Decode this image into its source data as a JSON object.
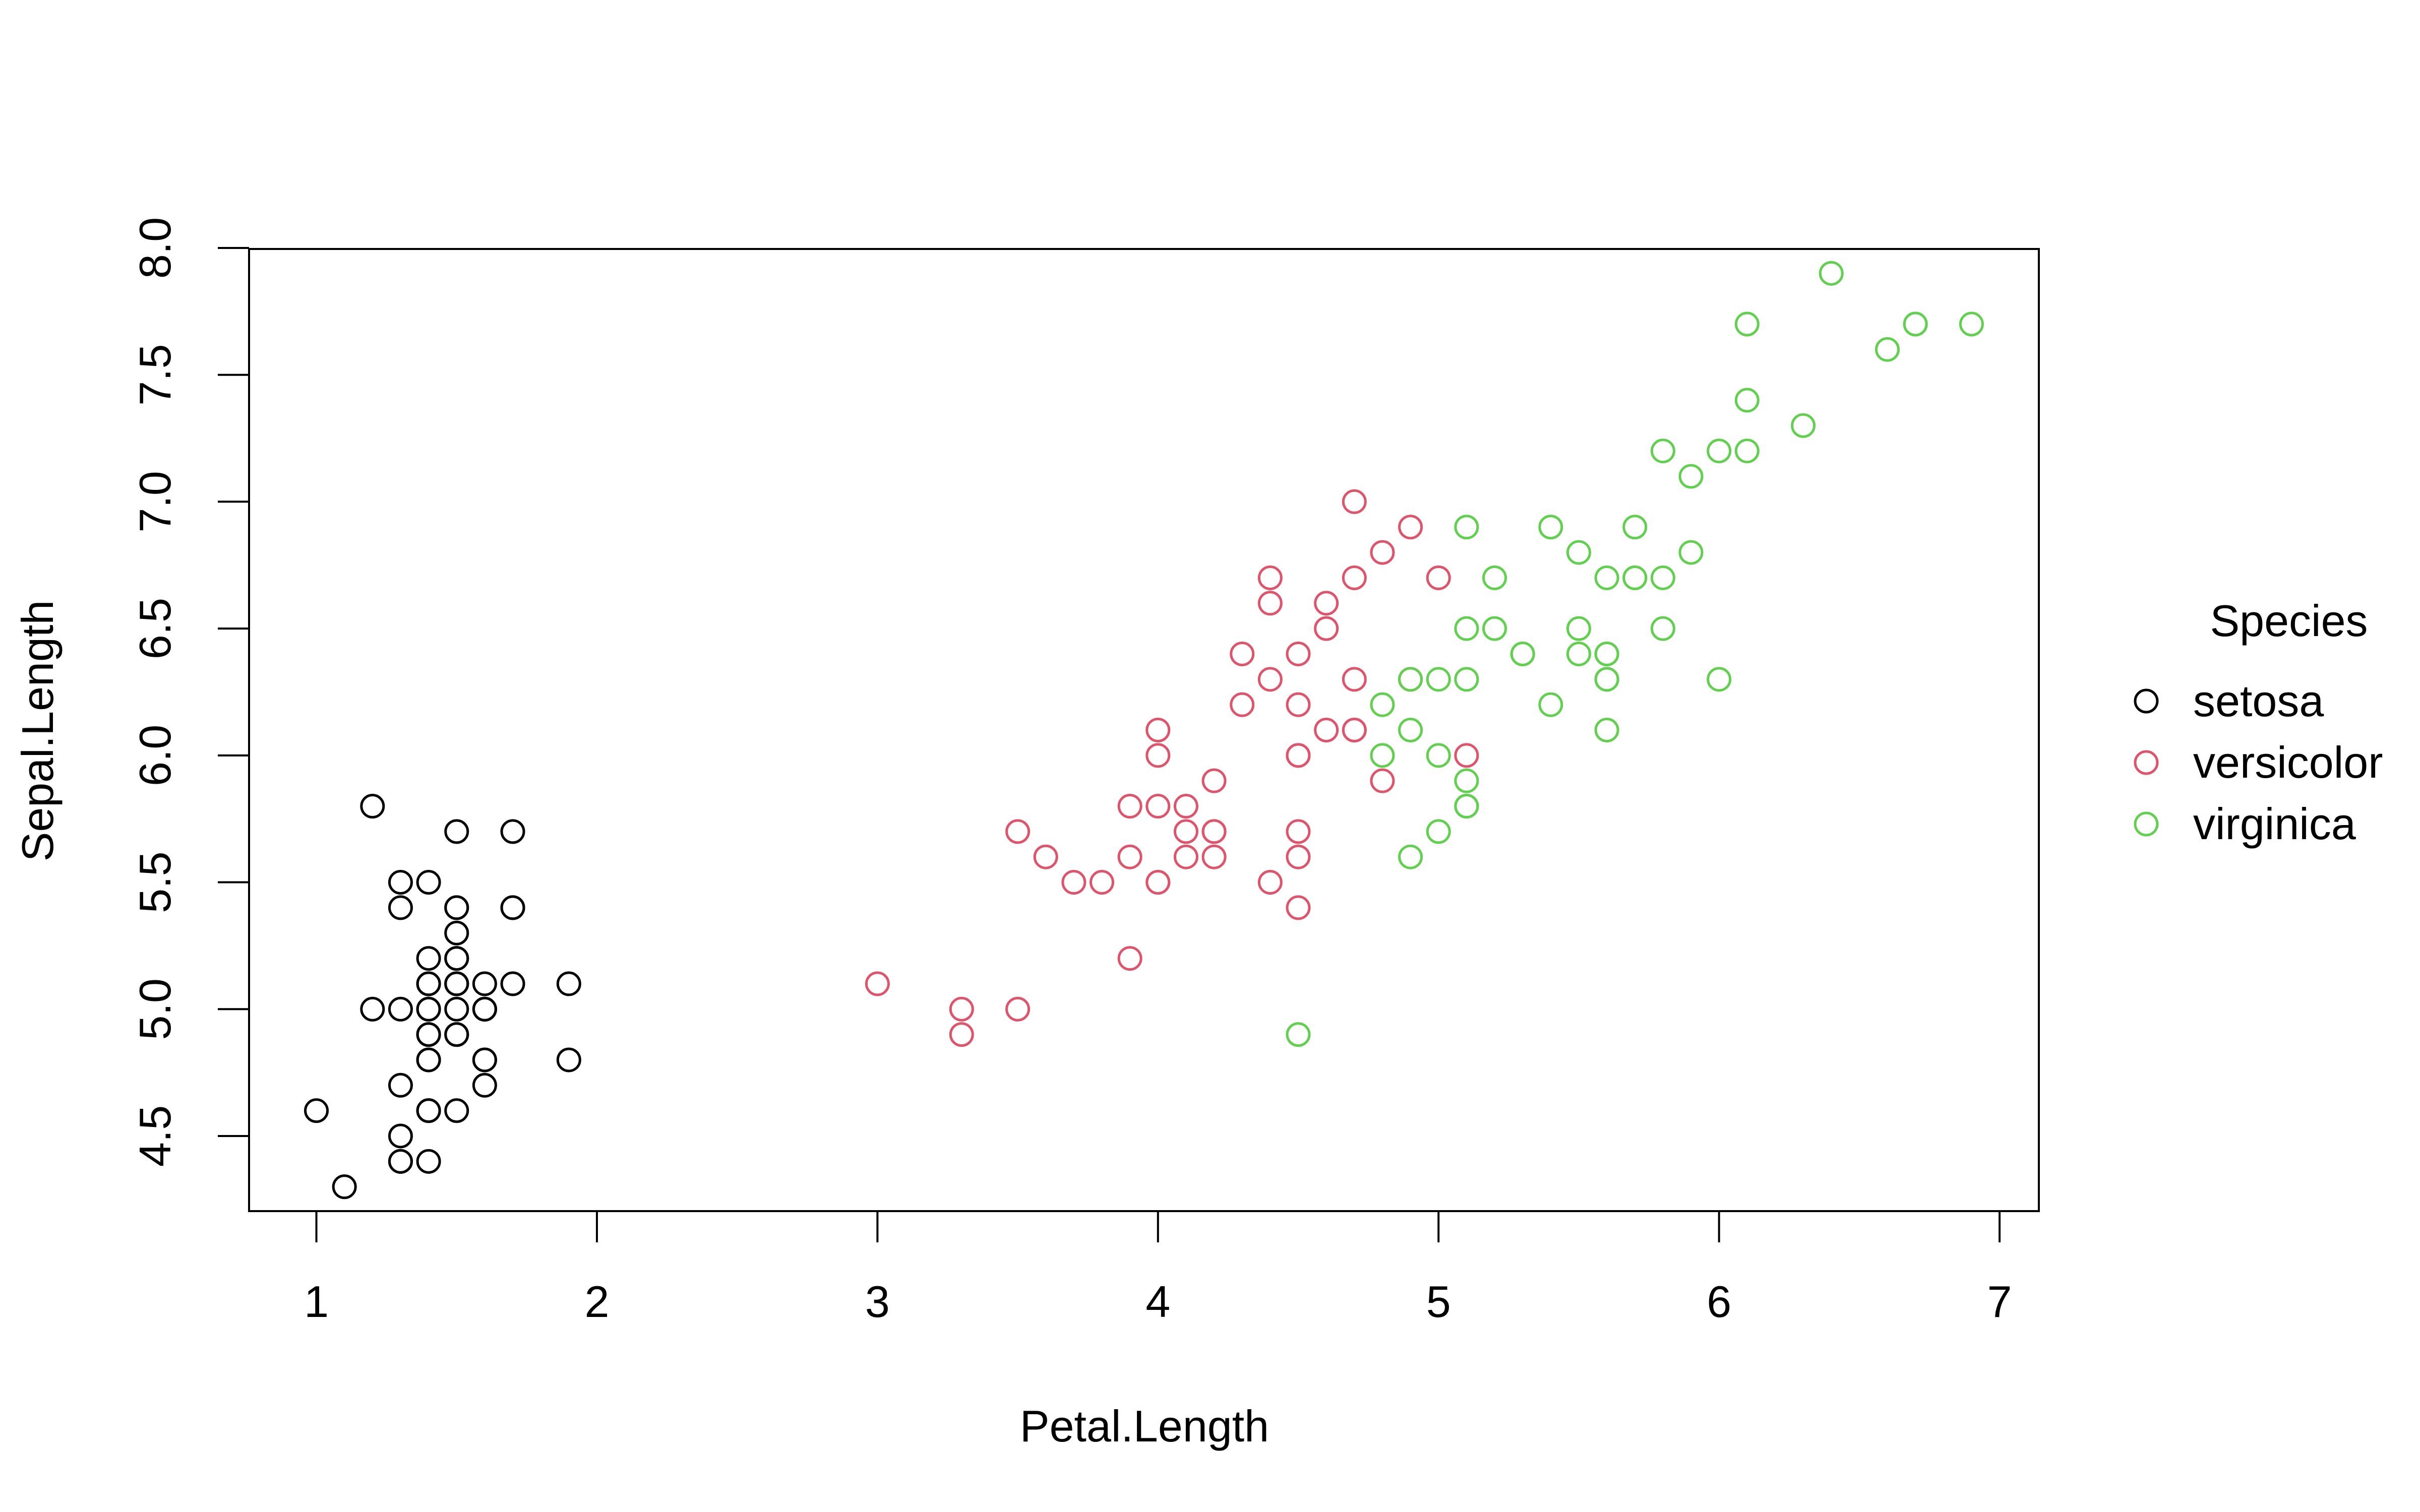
{
  "chart_data": {
    "type": "scatter",
    "title": "",
    "xlabel": "Petal.Length",
    "ylabel": "Sepal.Length",
    "xlim": [
      0.76,
      7.14
    ],
    "ylim": [
      4.204,
      7.996
    ],
    "xticks": [
      1,
      2,
      3,
      4,
      5,
      6,
      7
    ],
    "xtick_labels": [
      "1",
      "2",
      "3",
      "4",
      "5",
      "6",
      "7"
    ],
    "yticks": [
      4.5,
      5.0,
      5.5,
      6.0,
      6.5,
      7.0,
      7.5,
      8.0
    ],
    "ytick_labels": [
      "4.5",
      "5.0",
      "5.5",
      "6.0",
      "6.5",
      "7.0",
      "7.5",
      "8.0"
    ],
    "grid": false,
    "marker": "open-circle",
    "legend": {
      "title": "Species",
      "placement": "right-outside"
    },
    "series": [
      {
        "name": "setosa",
        "color": "#000000",
        "x": [
          1.4,
          1.4,
          1.3,
          1.5,
          1.4,
          1.7,
          1.4,
          1.5,
          1.4,
          1.5,
          1.5,
          1.6,
          1.4,
          1.1,
          1.2,
          1.5,
          1.3,
          1.4,
          1.7,
          1.5,
          1.7,
          1.5,
          1.0,
          1.7,
          1.9,
          1.6,
          1.6,
          1.5,
          1.4,
          1.6,
          1.6,
          1.5,
          1.5,
          1.4,
          1.5,
          1.2,
          1.3,
          1.4,
          1.3,
          1.5,
          1.3,
          1.3,
          1.3,
          1.6,
          1.9,
          1.4,
          1.6,
          1.4,
          1.5,
          1.4
        ],
        "y": [
          5.1,
          4.9,
          4.7,
          4.6,
          5.0,
          5.4,
          4.6,
          5.0,
          4.4,
          4.9,
          5.4,
          4.8,
          4.8,
          4.3,
          5.8,
          5.7,
          5.4,
          5.1,
          5.7,
          5.1,
          5.4,
          5.1,
          4.6,
          5.1,
          4.8,
          5.0,
          5.0,
          5.2,
          5.2,
          4.7,
          4.8,
          5.4,
          5.2,
          5.5,
          4.9,
          5.0,
          5.5,
          4.9,
          4.4,
          5.1,
          5.0,
          4.5,
          4.4,
          5.0,
          5.1,
          4.8,
          5.1,
          4.6,
          5.3,
          5.0
        ]
      },
      {
        "name": "versicolor",
        "color": "#DF536B",
        "x": [
          4.7,
          4.5,
          4.9,
          4.0,
          4.6,
          4.5,
          4.7,
          3.3,
          4.6,
          3.9,
          3.5,
          4.2,
          4.0,
          4.7,
          3.6,
          4.4,
          4.5,
          4.1,
          4.5,
          3.9,
          4.8,
          4.0,
          4.9,
          4.7,
          4.3,
          4.4,
          4.8,
          5.0,
          4.5,
          3.5,
          3.8,
          3.7,
          3.9,
          5.1,
          4.5,
          4.5,
          4.7,
          4.4,
          4.1,
          4.0,
          4.4,
          4.6,
          4.0,
          3.3,
          4.2,
          4.2,
          4.2,
          4.3,
          3.0,
          4.1
        ],
        "y": [
          7.0,
          6.4,
          6.9,
          5.5,
          6.5,
          5.7,
          6.3,
          4.9,
          6.6,
          5.2,
          5.0,
          5.9,
          6.0,
          6.1,
          5.6,
          6.7,
          5.6,
          5.8,
          6.2,
          5.6,
          5.9,
          6.1,
          6.3,
          6.1,
          6.4,
          6.6,
          6.8,
          6.7,
          6.0,
          5.7,
          5.5,
          5.5,
          5.8,
          6.0,
          5.4,
          6.0,
          6.7,
          6.3,
          5.6,
          5.5,
          5.5,
          6.1,
          5.8,
          5.0,
          5.6,
          5.7,
          5.7,
          6.2,
          5.1,
          5.7
        ]
      },
      {
        "name": "virginica",
        "color": "#61D04F",
        "x": [
          6.0,
          5.1,
          5.9,
          5.6,
          5.8,
          6.6,
          4.5,
          6.3,
          5.8,
          6.1,
          5.1,
          5.3,
          5.5,
          5.0,
          5.1,
          5.3,
          5.5,
          6.7,
          6.9,
          5.0,
          5.7,
          4.9,
          6.7,
          4.9,
          5.7,
          6.0,
          4.8,
          4.9,
          5.6,
          5.8,
          6.1,
          6.4,
          5.6,
          5.1,
          5.6,
          6.1,
          5.6,
          5.5,
          4.8,
          5.4,
          5.6,
          5.1,
          5.1,
          5.9,
          5.7,
          5.2,
          5.0,
          5.2,
          5.4,
          5.1
        ],
        "y": [
          6.3,
          5.8,
          7.1,
          6.3,
          6.5,
          7.6,
          4.9,
          7.3,
          6.7,
          7.2,
          6.5,
          6.4,
          6.8,
          5.7,
          5.8,
          6.4,
          6.5,
          7.7,
          7.7,
          6.0,
          6.9,
          5.6,
          7.7,
          6.3,
          6.7,
          7.2,
          6.2,
          6.1,
          6.4,
          7.2,
          7.4,
          7.9,
          6.4,
          6.3,
          6.1,
          7.7,
          6.3,
          6.4,
          6.0,
          6.9,
          6.7,
          6.9,
          5.8,
          6.8,
          6.7,
          6.7,
          6.3,
          6.5,
          6.2,
          5.9
        ]
      }
    ]
  }
}
